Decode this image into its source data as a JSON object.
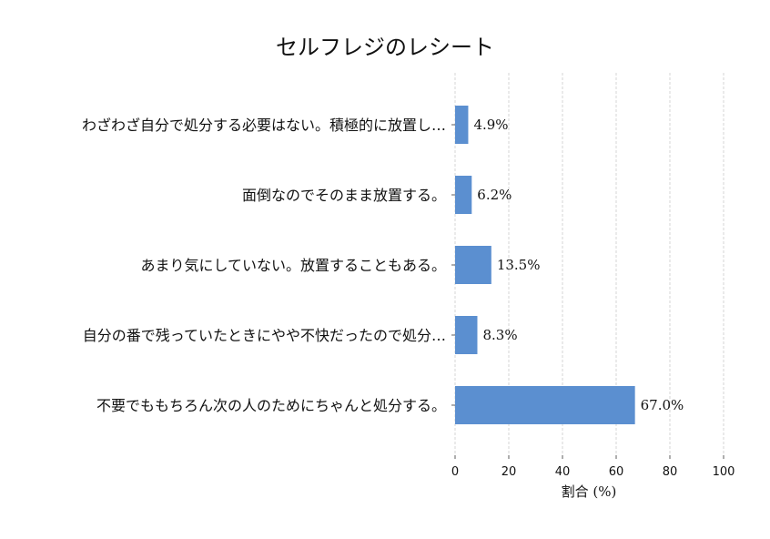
{
  "chart_data": {
    "type": "bar",
    "orientation": "horizontal",
    "title": "セルフレジのレシート",
    "xlabel": "割合 (%)",
    "ylabel": "",
    "xlim": [
      0,
      100
    ],
    "xticks": [
      "0",
      "20",
      "40",
      "60",
      "80",
      "100"
    ],
    "grid": "vertical dashed",
    "categories": [
      "わざわざ自分で処分する必要はない。積極的に放置し…",
      "面倒なのでそのまま放置する。",
      "あまり気にしていない。放置することもある。",
      "自分の番で残っていたときにやや不快だったので処分…",
      "不要でももちろん次の人のためにちゃんと処分する。"
    ],
    "values": [
      4.9,
      6.2,
      13.5,
      8.3,
      67.0
    ],
    "value_labels": [
      "4.9%",
      "6.2%",
      "13.5%",
      "8.3%",
      "67.0%"
    ],
    "bar_color": "#5b8fd0"
  }
}
